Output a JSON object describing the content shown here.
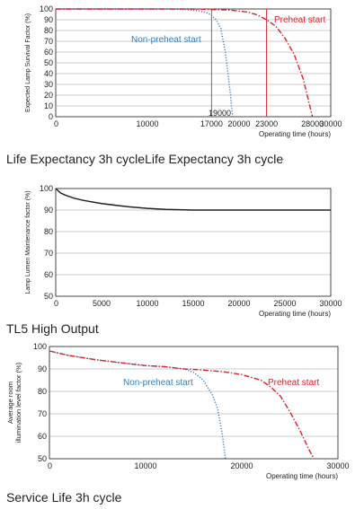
{
  "captions": {
    "chart1": "Life Expectancy 3h cycleLife Expectancy 3h cycle",
    "chart2": "TL5 High Output",
    "chart3": "Service Life 3h cycle"
  },
  "chart_data": [
    {
      "type": "line",
      "title": "",
      "xlabel": "Operating time (hours)",
      "ylabel": "Expected Lamp Survival Factor (%)",
      "xlim": [
        0,
        30000
      ],
      "ylim": [
        0,
        100
      ],
      "xticks": [
        0,
        10000,
        17000,
        20000,
        23000,
        28000,
        30000
      ],
      "yticks": [
        0,
        10,
        20,
        30,
        40,
        50,
        60,
        70,
        80,
        90,
        100
      ],
      "grid": true,
      "series": [
        {
          "name": "Non-preheat start",
          "color": "#2f7fc1",
          "style": "dotted",
          "x": [
            0,
            8000,
            12000,
            14000,
            15500,
            16500,
            17000,
            17500,
            18000,
            18500,
            19000,
            19300
          ],
          "y": [
            100,
            100,
            100,
            99.5,
            98.5,
            96.5,
            94,
            90,
            82,
            60,
            25,
            0
          ]
        },
        {
          "name": "Preheat start",
          "color": "#d8232a",
          "style": "dashdot",
          "x": [
            0,
            15000,
            19000,
            21000,
            22000,
            23000,
            24000,
            25000,
            26000,
            27000,
            28000
          ],
          "y": [
            100,
            100,
            99,
            97,
            94.5,
            90,
            84,
            73,
            58,
            35,
            0
          ]
        }
      ],
      "vlines": [
        {
          "x": 17000,
          "color": "#2f7fc1"
        },
        {
          "x": 23000,
          "color": "#d8232a"
        }
      ],
      "annotations": [
        "19000"
      ]
    },
    {
      "type": "line",
      "title": "",
      "xlabel": "Operating time (hours)",
      "ylabel": "Lamp Lumen Maintenance factor (%)",
      "xlim": [
        0,
        30000
      ],
      "ylim": [
        50,
        100
      ],
      "xticks": [
        0,
        5000,
        10000,
        15000,
        20000,
        25000,
        30000
      ],
      "yticks": [
        50,
        60,
        70,
        80,
        90,
        100
      ],
      "grid": true,
      "series": [
        {
          "name": "",
          "color": "#222222",
          "style": "solid",
          "x": [
            0,
            500,
            1000,
            2000,
            3000,
            5000,
            8000,
            10000,
            12000,
            15000,
            20000,
            25000,
            30000
          ],
          "y": [
            100,
            98,
            97,
            95.5,
            94.5,
            93,
            91.5,
            90.8,
            90.3,
            90,
            90,
            90,
            90
          ]
        }
      ]
    },
    {
      "type": "line",
      "title": "",
      "xlabel": "Operating time (hours)",
      "ylabel": "Average room illumination level factor (%)",
      "xlim": [
        0,
        30000
      ],
      "ylim": [
        50,
        100
      ],
      "xticks": [
        0,
        10000,
        20000,
        30000
      ],
      "yticks": [
        50,
        60,
        70,
        80,
        90,
        100
      ],
      "grid": true,
      "series": [
        {
          "name": "Non-preheat start",
          "color": "#2f7fc1",
          "style": "dotted",
          "x": [
            0,
            2000,
            5000,
            8000,
            10000,
            12000,
            14000,
            15000,
            16000,
            17000,
            17500,
            18000,
            18300
          ],
          "y": [
            98,
            96,
            94,
            92.5,
            91.5,
            91,
            90,
            88.5,
            85,
            78,
            72,
            60,
            50
          ]
        },
        {
          "name": "Preheat start",
          "color": "#d8232a",
          "style": "dashdot",
          "x": [
            0,
            2000,
            5000,
            8000,
            10000,
            12000,
            14000,
            16000,
            18000,
            20000,
            22000,
            23000,
            24000,
            25000,
            26000,
            27000,
            27500
          ],
          "y": [
            98,
            96,
            94,
            92.5,
            91.5,
            91,
            90,
            89.5,
            88.8,
            87.5,
            85,
            82,
            78,
            71,
            63,
            54,
            50
          ]
        }
      ]
    }
  ]
}
